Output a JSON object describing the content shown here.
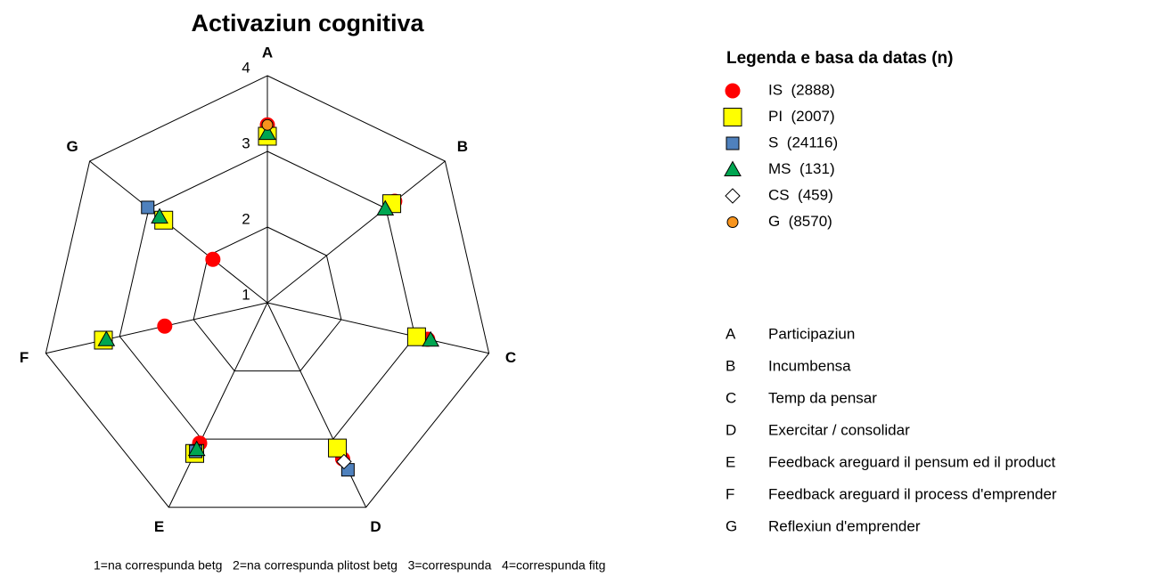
{
  "chart_data": {
    "type": "radar",
    "title": "Activaziun cognitiva",
    "axes": [
      "A",
      "B",
      "C",
      "D",
      "E",
      "F",
      "G"
    ],
    "rlim": [
      1,
      4
    ],
    "rticks": [
      1,
      2,
      3,
      4
    ],
    "legend_title": "Legenda e basa da datas (n)",
    "series": [
      {
        "name": "IS  (2888)",
        "color": "#ff0000",
        "marker": "circle",
        "values": [
          3.35,
          3.15,
          3.17,
          3.29,
          3.06,
          2.39,
          1.92
        ]
      },
      {
        "name": "PI  (2007)",
        "color": "#ffff00",
        "marker": "square",
        "values": [
          3.2,
          3.1,
          3.02,
          3.13,
          3.21,
          3.22,
          2.75
        ]
      },
      {
        "name": "S  (24116)",
        "color": "#4f81bd",
        "marker": "small-square",
        "values": [
          null,
          null,
          null,
          3.45,
          3.18,
          null,
          3.02
        ]
      },
      {
        "name": "MS  (131)",
        "color": "#00a651",
        "marker": "triangle",
        "values": [
          3.24,
          2.99,
          3.21,
          null,
          3.15,
          3.18,
          2.82
        ]
      },
      {
        "name": "CS  (459)",
        "color": "#ffffff",
        "marker": "diamond",
        "values": [
          null,
          null,
          null,
          3.33,
          null,
          null,
          null
        ]
      },
      {
        "name": "G  (8570)",
        "color": "#f7941d",
        "marker": "small-circle",
        "values": [
          3.35,
          null,
          null,
          null,
          null,
          null,
          null
        ]
      }
    ],
    "axis_descriptions": [
      {
        "key": "A",
        "label": "Participaziun"
      },
      {
        "key": "B",
        "label": "Incumbensa"
      },
      {
        "key": "C",
        "label": "Temp da pensar"
      },
      {
        "key": "D",
        "label": "Exercitar / consolidar"
      },
      {
        "key": "E",
        "label": "Feedback areguard il pensum ed il product"
      },
      {
        "key": "F",
        "label": "Feedback areguard il process d'emprender"
      },
      {
        "key": "G",
        "label": "Reflexiun d'emprender"
      }
    ],
    "footnote": "1=na correspunda betg   2=na correspunda plitost betg   3=correspunda   4=correspunda fitg"
  }
}
